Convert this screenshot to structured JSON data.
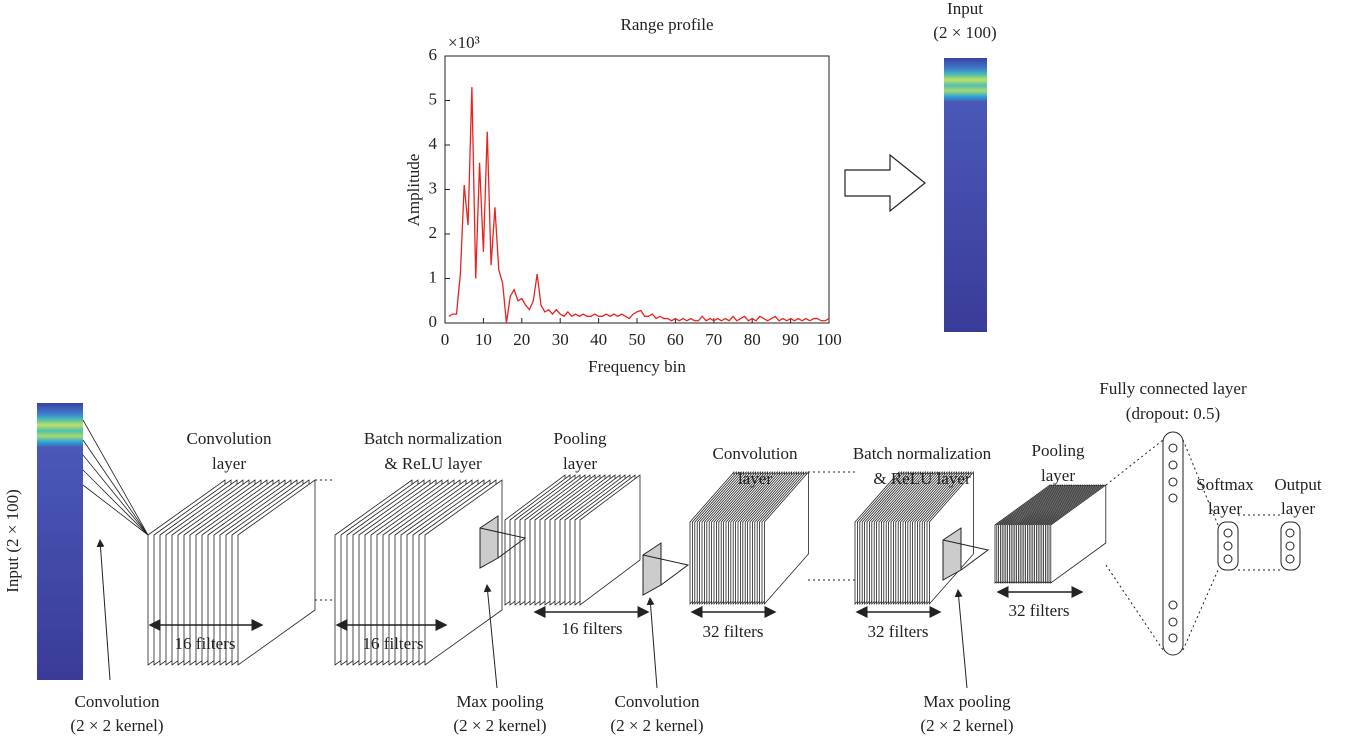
{
  "chart_data": {
    "type": "line",
    "title": "Range profile",
    "subtitle": "×10³",
    "x_label": "Frequency bin",
    "y_label": "Amplitude",
    "color": "#e8231f",
    "x": [
      1,
      2,
      3,
      4,
      5,
      6,
      7,
      8,
      9,
      10,
      11,
      12,
      13,
      14,
      15,
      16,
      17,
      18,
      19,
      20,
      21,
      22,
      23,
      24,
      25,
      26,
      27,
      28,
      29,
      30,
      31,
      32,
      33,
      34,
      35,
      36,
      37,
      38,
      39,
      40,
      41,
      42,
      43,
      44,
      45,
      46,
      47,
      48,
      49,
      50,
      51,
      52,
      53,
      54,
      55,
      56,
      57,
      58,
      59,
      60,
      61,
      62,
      63,
      64,
      65,
      66,
      67,
      68,
      69,
      70,
      71,
      72,
      73,
      74,
      75,
      76,
      77,
      78,
      79,
      80,
      81,
      82,
      83,
      84,
      85,
      86,
      87,
      88,
      89,
      90,
      91,
      92,
      93,
      94,
      95,
      96,
      97,
      98,
      99,
      100
    ],
    "values": [
      0.15,
      0.2,
      0.2,
      1.1,
      3.1,
      2.2,
      5.3,
      1.0,
      3.6,
      1.6,
      4.3,
      1.3,
      2.6,
      1.2,
      0.9,
      0.0,
      0.6,
      0.75,
      0.5,
      0.55,
      0.4,
      0.3,
      0.5,
      1.1,
      0.4,
      0.25,
      0.3,
      0.2,
      0.3,
      0.2,
      0.15,
      0.25,
      0.15,
      0.2,
      0.15,
      0.2,
      0.15,
      0.15,
      0.2,
      0.15,
      0.15,
      0.2,
      0.15,
      0.2,
      0.15,
      0.2,
      0.15,
      0.1,
      0.2,
      0.25,
      0.28,
      0.15,
      0.15,
      0.2,
      0.1,
      0.15,
      0.1,
      0.1,
      0.05,
      0.1,
      0.05,
      0.1,
      0.05,
      0.1,
      0.05,
      0.05,
      0.15,
      0.05,
      0.1,
      0.05,
      0.1,
      0.05,
      0.1,
      0.05,
      0.15,
      0.05,
      0.1,
      0.15,
      0.05,
      0.1,
      0.05,
      0.15,
      0.1,
      0.05,
      0.1,
      0.15,
      0.05,
      0.1,
      0.05,
      0.1,
      0.05,
      0.1,
      0.05,
      0.1,
      0.05,
      0.1,
      0.1,
      0.05,
      0.05,
      0.1
    ],
    "xlim": [
      0,
      100
    ],
    "xticks": [
      0,
      10,
      20,
      30,
      40,
      50,
      60,
      70,
      80,
      90,
      100
    ],
    "ylim": [
      0,
      6
    ],
    "yticks": [
      0,
      1,
      2,
      3,
      4,
      5,
      6
    ]
  },
  "diagram": {
    "top_input": [
      "Input",
      "(2 × 100)"
    ],
    "side_input": "Input (2 × 100)",
    "layers": [
      {
        "label": [
          "Convolution",
          "layer"
        ],
        "filters": "16 filters"
      },
      {
        "label": [
          "Batch normalization",
          "& ReLU layer"
        ],
        "filters": "16 filters"
      },
      {
        "label": [
          "Pooling",
          "layer"
        ],
        "filters": "16 filters"
      },
      {
        "label": [
          "Convolution",
          "layer"
        ],
        "filters": "32 filters"
      },
      {
        "label": [
          "Batch normalization",
          "& ReLU layer"
        ],
        "filters": "32 filters"
      },
      {
        "label": [
          "Pooling",
          "layer"
        ],
        "filters": "32 filters"
      }
    ],
    "annotations": [
      [
        "Convolution",
        "(2 × 2 kernel)"
      ],
      [
        "Max pooling",
        "(2 × 2 kernel)"
      ],
      [
        "Convolution",
        "(2 × 2 kernel)"
      ],
      [
        "Max pooling",
        "(2 × 2 kernel)"
      ]
    ],
    "fully_connected": [
      "Fully connected layer",
      "(dropout: 0.5)"
    ],
    "softmax": [
      "Softmax",
      "layer"
    ],
    "output": [
      "Output",
      "layer"
    ]
  }
}
